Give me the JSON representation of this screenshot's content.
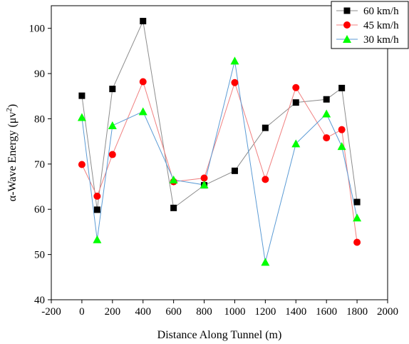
{
  "chart_data": {
    "type": "line",
    "title": "",
    "xlabel": "Distance Along Tunnel (m)",
    "ylabel_main": "α-Wave Energy (μv",
    "ylabel_sup": "2",
    "ylabel_close": ")",
    "xlim": [
      -200,
      2000
    ],
    "ylim": [
      40,
      105
    ],
    "xticks": [
      -200,
      0,
      200,
      400,
      600,
      800,
      1000,
      1200,
      1400,
      1600,
      1800,
      2000
    ],
    "yticks": [
      40,
      50,
      60,
      70,
      80,
      90,
      100
    ],
    "grid": false,
    "legend_position": "top-right",
    "series": [
      {
        "name": "60 km/h",
        "marker": "square",
        "marker_color": "#000000",
        "line_color": "#8c8c8c",
        "x": [
          0,
          100,
          200,
          400,
          600,
          800,
          1000,
          1200,
          1400,
          1600,
          1700,
          1800
        ],
        "y": [
          85.1,
          59.9,
          86.6,
          101.6,
          60.3,
          65.3,
          68.5,
          78.0,
          83.6,
          84.3,
          86.8,
          61.6
        ]
      },
      {
        "name": "45 km/h",
        "marker": "circle",
        "marker_color": "#ff0000",
        "line_color": "#f08080",
        "x": [
          0,
          100,
          200,
          400,
          600,
          800,
          1000,
          1200,
          1400,
          1600,
          1700,
          1800
        ],
        "y": [
          69.9,
          62.9,
          72.1,
          88.2,
          66.1,
          66.9,
          88.0,
          66.6,
          86.9,
          75.8,
          77.6,
          52.7
        ]
      },
      {
        "name": "30 km/h",
        "marker": "triangle",
        "marker_color": "#00ff00",
        "line_color": "#5b9bd5",
        "x": [
          0,
          100,
          200,
          400,
          600,
          800,
          1000,
          1200,
          1400,
          1600,
          1700,
          1800
        ],
        "y": [
          80.3,
          53.3,
          78.5,
          81.6,
          66.5,
          65.4,
          92.8,
          48.3,
          74.5,
          81.1,
          73.9,
          58.1
        ]
      }
    ]
  }
}
